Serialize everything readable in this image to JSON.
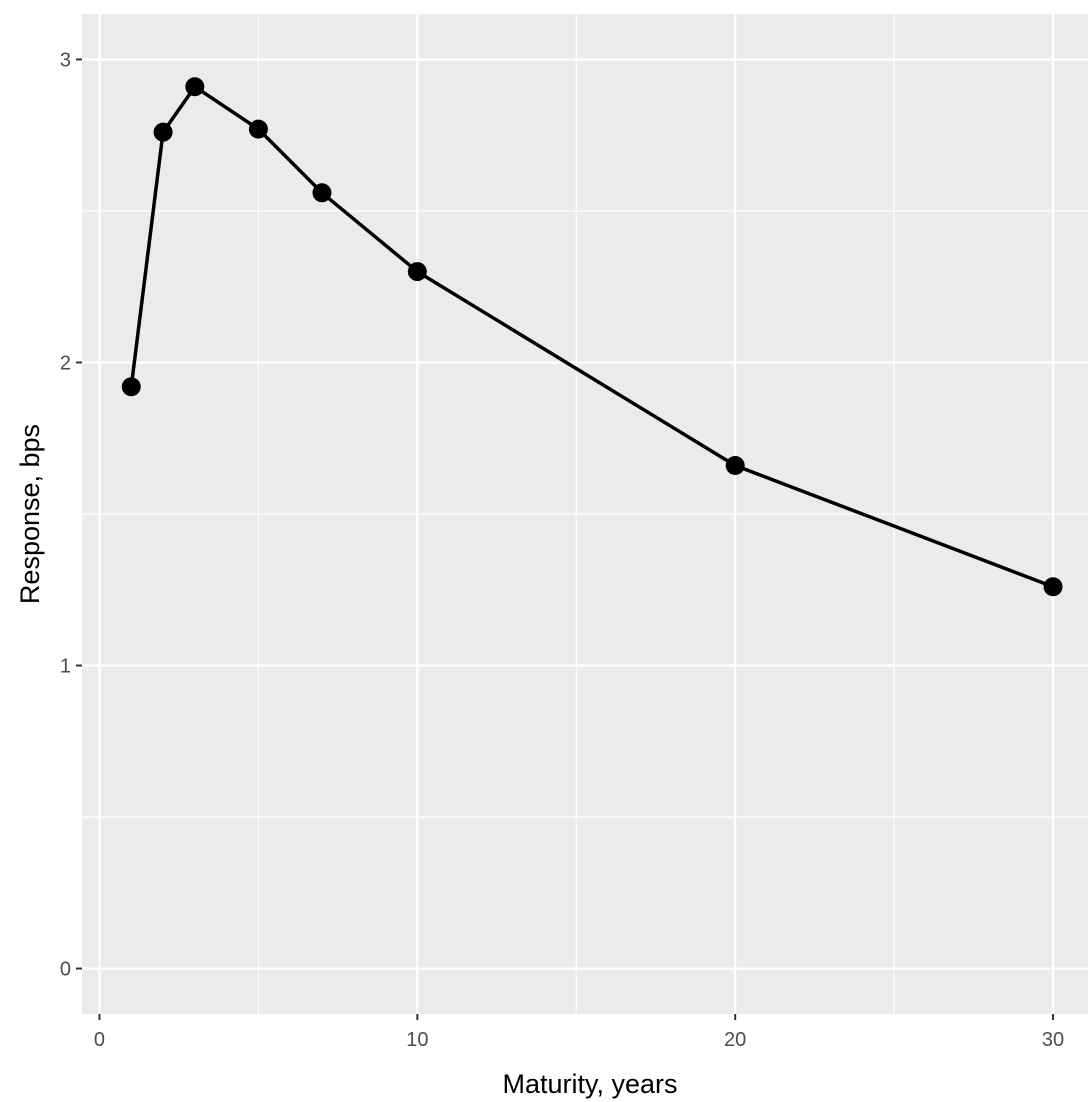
{
  "chart_data": {
    "type": "line",
    "title": "",
    "xlabel": "Maturity, years",
    "ylabel": "Response, bps",
    "x_ticks": [
      0,
      10,
      20,
      30
    ],
    "y_ticks": [
      0,
      1,
      2,
      3
    ],
    "x_tick_labels": [
      "0",
      "10",
      "20",
      "30"
    ],
    "y_tick_labels": [
      "0",
      "1",
      "2",
      "3"
    ],
    "xlim": [
      -0.55,
      31.1
    ],
    "ylim": [
      -0.15,
      3.15
    ],
    "grid": true,
    "legend": "none",
    "colors": {
      "panel": "#ebebeb",
      "grid": "#ffffff",
      "line": "#000000"
    },
    "series": [
      {
        "x": [
          1,
          2,
          3,
          5,
          7,
          10,
          20,
          30
        ],
        "y": [
          1.92,
          2.76,
          2.91,
          2.77,
          2.56,
          2.3,
          1.66,
          1.26
        ]
      }
    ]
  }
}
